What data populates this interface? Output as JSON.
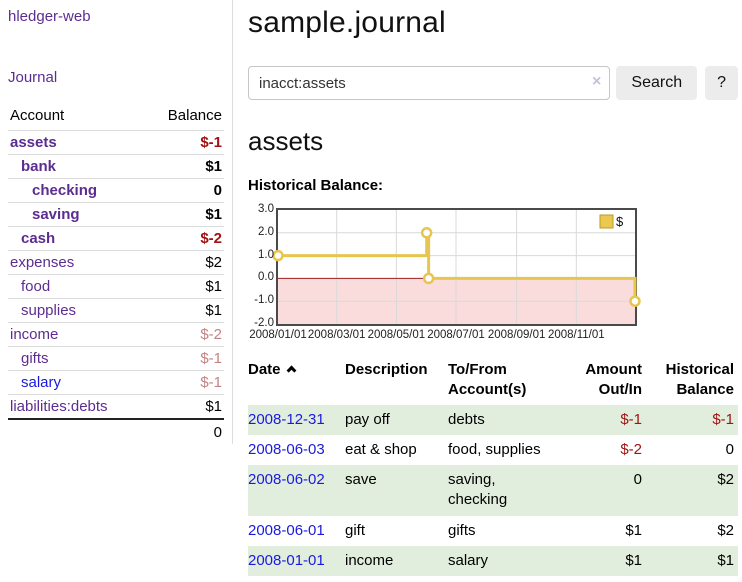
{
  "sidebar": {
    "app_title": "hledger-web",
    "journal_link": "Journal",
    "accounts_table": {
      "headers": {
        "account": "Account",
        "balance": "Balance"
      },
      "rows": [
        {
          "name": "assets",
          "depth": 1,
          "bold": true,
          "name_color": "purple",
          "balance": "$-1",
          "balance_style": "neg"
        },
        {
          "name": "bank",
          "depth": 2,
          "bold": true,
          "name_color": "purple",
          "balance": "$1",
          "balance_style": "normal"
        },
        {
          "name": "checking",
          "depth": 3,
          "bold": true,
          "name_color": "purple",
          "balance": "0",
          "balance_style": "normal"
        },
        {
          "name": "saving",
          "depth": 3,
          "bold": true,
          "name_color": "purple",
          "balance": "$1",
          "balance_style": "normal"
        },
        {
          "name": "cash",
          "depth": 2,
          "bold": true,
          "name_color": "purple",
          "balance": "$-2",
          "balance_style": "neg"
        },
        {
          "name": "expenses",
          "depth": 1,
          "bold": false,
          "name_color": "purple",
          "balance": "$2",
          "balance_style": "normal"
        },
        {
          "name": "food",
          "depth": 2,
          "bold": false,
          "name_color": "purple",
          "balance": "$1",
          "balance_style": "normal"
        },
        {
          "name": "supplies",
          "depth": 2,
          "bold": false,
          "name_color": "purple",
          "balance": "$1",
          "balance_style": "normal"
        },
        {
          "name": "income",
          "depth": 1,
          "bold": false,
          "name_color": "purple",
          "balance": "$-2",
          "balance_style": "faded"
        },
        {
          "name": "gifts",
          "depth": 2,
          "bold": false,
          "name_color": "purple",
          "balance": "$-1",
          "balance_style": "faded"
        },
        {
          "name": "salary",
          "depth": 2,
          "bold": false,
          "name_color": "blue",
          "balance": "$-1",
          "balance_style": "faded"
        },
        {
          "name": "liabilities:debts",
          "depth": 1,
          "bold": false,
          "name_color": "purple",
          "balance": "$1",
          "balance_style": "normal"
        }
      ],
      "total": "0"
    }
  },
  "main": {
    "page_title": "sample.journal",
    "search": {
      "value": "inacct:assets",
      "clear_icon": "×",
      "search_button": "Search",
      "help_button": "?"
    },
    "section_title": "assets",
    "chart_label": "Historical Balance:"
  },
  "chart_data": {
    "type": "line",
    "title": "Historical Balance:",
    "step": true,
    "series": [
      {
        "name": "$",
        "points": [
          [
            "2008-01-01",
            1
          ],
          [
            "2008-06-01",
            2
          ],
          [
            "2008-06-03",
            0
          ],
          [
            "2008-12-31",
            -1
          ]
        ]
      }
    ],
    "x_tick_labels": [
      "2008/01/01",
      "2008/03/01",
      "2008/05/01",
      "2008/07/01",
      "2008/09/01",
      "2008/11/01"
    ],
    "y_tick_labels": [
      "3.0",
      "2.0",
      "1.0",
      "0.0",
      "-1.0",
      "-2.0"
    ],
    "xlim": [
      "2008-01-01",
      "2008-12-31"
    ],
    "ylim": [
      -2,
      3
    ],
    "grid": true,
    "legend_position": "top-right",
    "negative_region_shaded": true
  },
  "register_table": {
    "headers": {
      "date": "Date",
      "description": "Description",
      "accounts": "To/From\nAccount(s)",
      "amount": "Amount\nOut/In",
      "balance": "Historical\nBalance"
    },
    "rows": [
      {
        "date": "2008-12-31",
        "description": "pay off",
        "accounts": "debts",
        "amount": "$-1",
        "amount_negative": true,
        "balance": "$-1",
        "balance_negative": true
      },
      {
        "date": "2008-06-03",
        "description": "eat & shop",
        "accounts": "food, supplies",
        "amount": "$-2",
        "amount_negative": true,
        "balance": "0",
        "balance_negative": false
      },
      {
        "date": "2008-06-02",
        "description": "save",
        "accounts": "saving,\nchecking",
        "amount": "0",
        "amount_negative": false,
        "balance": "$2",
        "balance_negative": false
      },
      {
        "date": "2008-06-01",
        "description": "gift",
        "accounts": "gifts",
        "amount": "$1",
        "amount_negative": false,
        "balance": "$2",
        "balance_negative": false
      },
      {
        "date": "2008-01-01",
        "description": "income",
        "accounts": "salary",
        "amount": "$1",
        "amount_negative": false,
        "balance": "$1",
        "balance_negative": false
      }
    ]
  },
  "colors": {
    "link_purple": "#5c2d91",
    "link_blue": "#1a1adf",
    "negative_strong": "#a11212",
    "negative_faded": "#c28383",
    "row_green": "#e2eedd",
    "chart_line": "#e7c64f",
    "chart_marker_fill": "#ffffff",
    "chart_negative_region": "#fbdcdc",
    "chart_zero_line": "#a02020",
    "chart_grid": "#d9d9d9",
    "legend_fill": "#eac94e",
    "legend_border": "#b9992e"
  }
}
